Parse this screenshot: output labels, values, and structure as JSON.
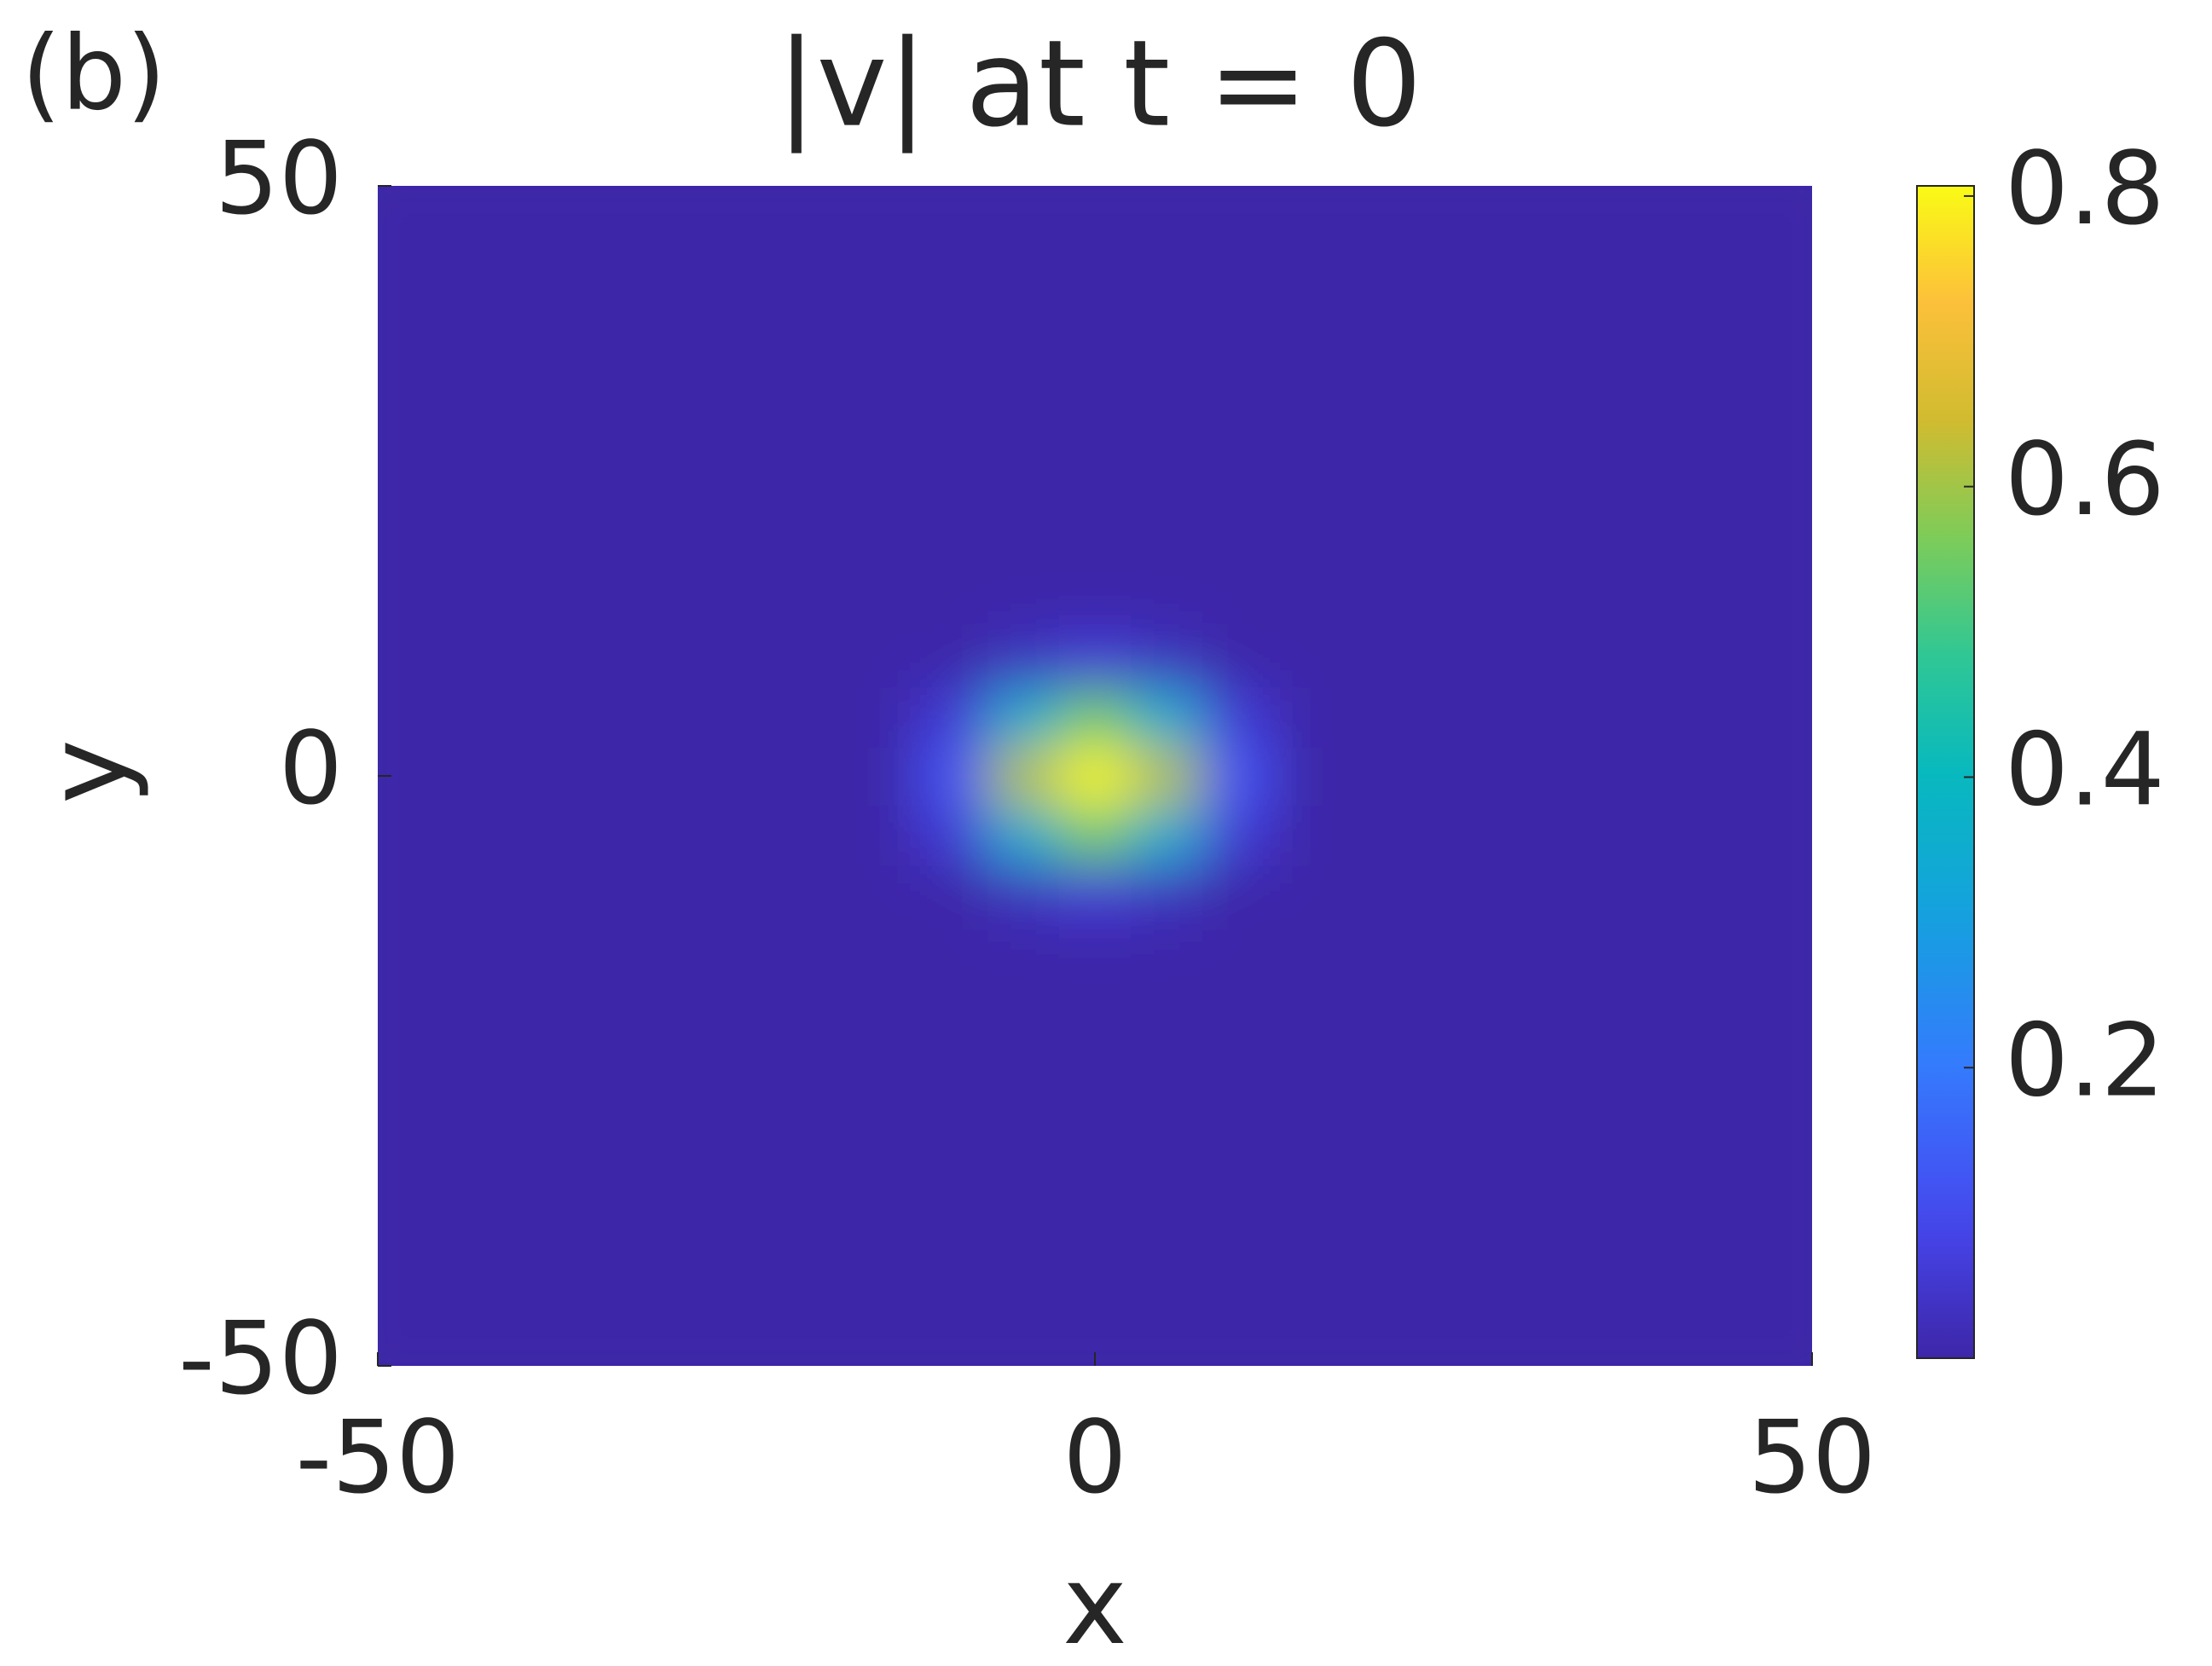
{
  "chart_data": {
    "type": "heatmap",
    "panel_label": "(b)",
    "title": "|v| at t = 0",
    "xlabel": "x",
    "ylabel": "y",
    "xlim": [
      -50,
      50
    ],
    "ylim": [
      -50,
      50
    ],
    "xticks": [
      -50,
      0,
      50
    ],
    "yticks": [
      -50,
      0,
      50
    ],
    "colormap": "parula",
    "zlim": [
      0,
      0.807
    ],
    "colorbar_ticks": [
      0.2,
      0.4,
      0.6,
      0.8
    ],
    "x": [
      -50,
      -45,
      -40,
      -35,
      -30,
      -25,
      -20,
      -15,
      -10,
      -5,
      0,
      5,
      10,
      15,
      20,
      25,
      30,
      35,
      40,
      45,
      50
    ],
    "y": [
      -50,
      -45,
      -40,
      -35,
      -30,
      -25,
      -20,
      -15,
      -10,
      -5,
      0,
      5,
      10,
      15,
      20,
      25,
      30,
      35,
      40,
      45,
      50
    ],
    "z": [
      [
        0,
        0,
        0,
        0,
        0,
        0,
        0,
        0,
        0,
        0,
        0,
        0,
        0,
        0,
        0,
        0,
        0,
        0,
        0,
        0,
        0
      ],
      [
        0,
        0,
        0,
        0,
        0,
        0,
        0,
        0,
        0,
        0,
        0,
        0,
        0,
        0,
        0,
        0,
        0,
        0,
        0,
        0,
        0
      ],
      [
        0,
        0,
        0,
        0,
        0,
        0,
        0,
        0,
        0,
        0,
        0,
        0,
        0,
        0,
        0,
        0,
        0,
        0,
        0,
        0,
        0
      ],
      [
        0,
        0,
        0,
        0,
        0,
        0,
        0,
        0,
        0,
        0,
        0,
        0,
        0,
        0,
        0,
        0,
        0,
        0,
        0,
        0,
        0
      ],
      [
        0,
        0,
        0,
        0,
        0,
        0,
        0,
        0,
        0,
        0,
        0,
        0,
        0,
        0,
        0,
        0,
        0,
        0,
        0,
        0,
        0
      ],
      [
        0,
        0,
        0,
        0,
        0,
        0,
        0,
        0,
        0,
        0,
        0,
        0,
        0,
        0,
        0,
        0,
        0,
        0,
        0,
        0,
        0
      ],
      [
        0,
        0,
        0,
        0,
        0,
        0,
        0,
        0,
        0,
        0,
        0,
        0,
        0,
        0,
        0,
        0,
        0,
        0,
        0,
        0,
        0
      ],
      [
        0,
        0,
        0,
        0,
        0,
        0,
        0,
        0,
        0,
        0,
        0,
        0,
        0,
        0,
        0,
        0,
        0,
        0,
        0,
        0,
        0
      ],
      [
        0,
        0,
        0,
        0,
        0,
        0,
        0,
        0,
        0,
        0.03,
        0.06,
        0.03,
        0,
        0,
        0,
        0,
        0,
        0,
        0,
        0,
        0
      ],
      [
        0,
        0,
        0,
        0,
        0,
        0,
        0,
        0,
        0.06,
        0.35,
        0.55,
        0.35,
        0.06,
        0,
        0,
        0,
        0,
        0,
        0,
        0,
        0
      ],
      [
        0,
        0,
        0,
        0,
        0,
        0,
        0,
        0,
        0.12,
        0.62,
        0.8,
        0.62,
        0.12,
        0,
        0,
        0,
        0,
        0,
        0,
        0,
        0
      ],
      [
        0,
        0,
        0,
        0,
        0,
        0,
        0,
        0,
        0.06,
        0.35,
        0.55,
        0.35,
        0.06,
        0,
        0,
        0,
        0,
        0,
        0,
        0,
        0
      ],
      [
        0,
        0,
        0,
        0,
        0,
        0,
        0,
        0,
        0,
        0.03,
        0.06,
        0.03,
        0,
        0,
        0,
        0,
        0,
        0,
        0,
        0,
        0
      ],
      [
        0,
        0,
        0,
        0,
        0,
        0,
        0,
        0,
        0,
        0,
        0,
        0,
        0,
        0,
        0,
        0,
        0,
        0,
        0,
        0,
        0
      ],
      [
        0,
        0,
        0,
        0,
        0,
        0,
        0,
        0,
        0,
        0,
        0,
        0,
        0,
        0,
        0,
        0,
        0,
        0,
        0,
        0,
        0
      ],
      [
        0,
        0,
        0,
        0,
        0,
        0,
        0,
        0,
        0,
        0,
        0,
        0,
        0,
        0,
        0,
        0,
        0,
        0,
        0,
        0,
        0
      ],
      [
        0,
        0,
        0,
        0,
        0,
        0,
        0,
        0,
        0,
        0,
        0,
        0,
        0,
        0,
        0,
        0,
        0,
        0,
        0,
        0,
        0
      ],
      [
        0,
        0,
        0,
        0,
        0,
        0,
        0,
        0,
        0,
        0,
        0,
        0,
        0,
        0,
        0,
        0,
        0,
        0,
        0,
        0,
        0
      ],
      [
        0,
        0,
        0,
        0,
        0,
        0,
        0,
        0,
        0,
        0,
        0,
        0,
        0,
        0,
        0,
        0,
        0,
        0,
        0,
        0,
        0
      ],
      [
        0,
        0,
        0,
        0,
        0,
        0,
        0,
        0,
        0,
        0,
        0,
        0,
        0,
        0,
        0,
        0,
        0,
        0,
        0,
        0,
        0
      ],
      [
        0,
        0,
        0,
        0,
        0,
        0,
        0,
        0,
        0,
        0,
        0,
        0,
        0,
        0,
        0,
        0,
        0,
        0,
        0,
        0,
        0
      ]
    ]
  }
}
